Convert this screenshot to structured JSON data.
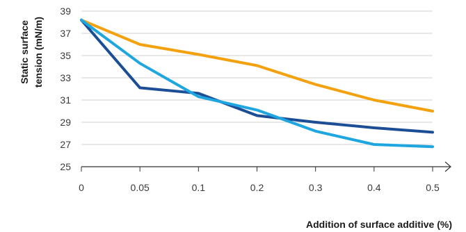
{
  "chart_data": {
    "type": "line",
    "title": "",
    "xlabel": "Addition of surface additive (%)",
    "ylabel_lines": [
      "Static surface",
      "tension (mN/m)"
    ],
    "categories": [
      "0",
      "0.05",
      "0.1",
      "0.2",
      "0.3",
      "0.4",
      "0.5"
    ],
    "ylim": [
      25,
      39
    ],
    "yticks": [
      "25",
      "27",
      "29",
      "31",
      "33",
      "35",
      "37",
      "39"
    ],
    "grid": "horizontal",
    "legend": "none",
    "series": [
      {
        "color": "#f3a10f",
        "values": [
          38.2,
          36.0,
          35.1,
          34.1,
          32.4,
          31.0,
          30.0
        ]
      },
      {
        "color": "#1c4e96",
        "values": [
          38.2,
          32.1,
          31.6,
          29.6,
          29.0,
          28.5,
          28.1
        ]
      },
      {
        "color": "#1da6e0",
        "values": [
          38.2,
          34.3,
          31.3,
          30.1,
          28.2,
          27.0,
          26.8
        ]
      }
    ],
    "colors": {
      "grid": "#d0d0d0",
      "axis": "#333333"
    }
  }
}
